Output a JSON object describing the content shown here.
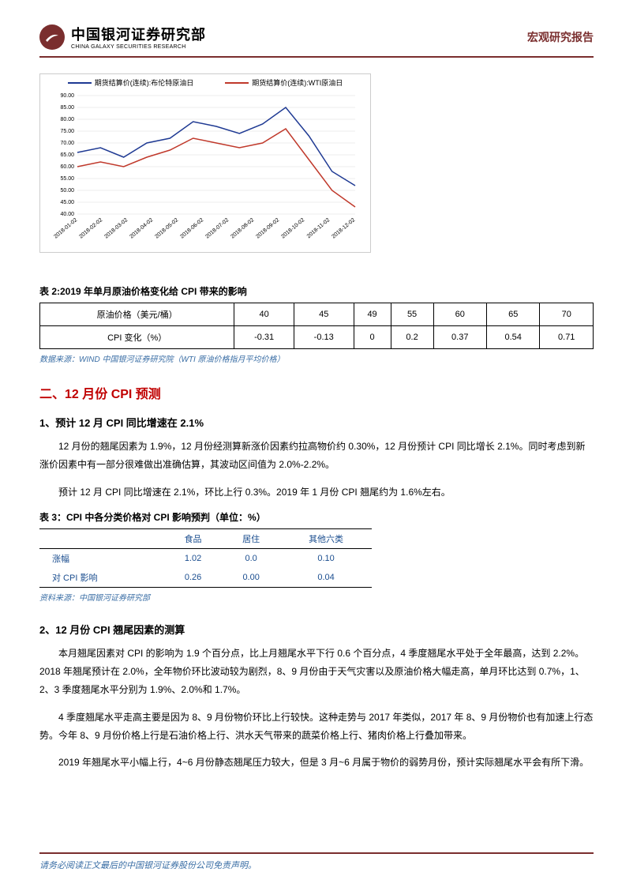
{
  "header": {
    "logo_cn": "中国银河证券研究部",
    "logo_en": "CHINA GALAXY SECURITIES RESEARCH",
    "doc_type": "宏观研究报告"
  },
  "chart1": {
    "type": "line",
    "legend": [
      {
        "label": "期货结算价(连续):布伦特原油日",
        "color": "#1f3a93"
      },
      {
        "label": "期货结算价(连续):WTI原油日",
        "color": "#c0392b"
      }
    ],
    "ylim": [
      40,
      90
    ],
    "ytick_step": 5,
    "yticks": [
      "40.00",
      "45.00",
      "50.00",
      "55.00",
      "60.00",
      "65.00",
      "70.00",
      "75.00",
      "80.00",
      "85.00",
      "90.00"
    ],
    "xlabels": [
      "2018-01-02",
      "2018-02-02",
      "2018-03-02",
      "2018-04-02",
      "2018-05-02",
      "2018-06-02",
      "2018-07-02",
      "2018-08-02",
      "2018-09-02",
      "2018-10-02",
      "2018-11-02",
      "2018-12-02"
    ],
    "series_brent": [
      66,
      68,
      64,
      70,
      72,
      79,
      77,
      74,
      78,
      85,
      73,
      58,
      52
    ],
    "series_wti": [
      60,
      62,
      60,
      64,
      67,
      72,
      70,
      68,
      70,
      76,
      63,
      50,
      43
    ],
    "grid_color": "#dddddd",
    "background_color": "#ffffff",
    "title_fontsize": 9,
    "axis_fontsize": 7
  },
  "table2": {
    "title": "表 2:2019 年单月原油价格变化给 CPI 带来的影响",
    "row1_label": "原油价格（美元/桶）",
    "row2_label": "CPI 变化（%）",
    "prices": [
      "40",
      "45",
      "49",
      "55",
      "60",
      "65",
      "70"
    ],
    "cpi_change": [
      "-0.31",
      "-0.13",
      "0",
      "0.2",
      "0.37",
      "0.54",
      "0.71"
    ],
    "source": "数据来源：WIND 中国银河证券研究院（WTI 原油价格指月平均价格）"
  },
  "section2": {
    "title": "二、12 月份 CPI 预测"
  },
  "sub1": {
    "title": "1、预计 12 月 CPI 同比增速在 2.1%",
    "p1": "12 月份的翘尾因素为 1.9%，12 月份经测算新涨价因素约拉高物价约 0.30%，12 月份预计 CPI 同比增长 2.1%。同时考虑到新涨价因素中有一部分很难做出准确估算，其波动区间值为 2.0%-2.2%。",
    "p2": "预计 12 月 CPI 同比增速在 2.1%，环比上行 0.3%。2019 年 1 月份 CPI 翘尾约为 1.6%左右。"
  },
  "table3": {
    "title": "表 3：CPI 中各分类价格对 CPI 影响预判（单位：%）",
    "headers": [
      "",
      "食品",
      "居住",
      "其他六类"
    ],
    "rows": [
      {
        "label": "涨幅",
        "vals": [
          "1.02",
          "0.0",
          "0.10"
        ]
      },
      {
        "label": "对 CPI 影响",
        "vals": [
          "0.26",
          "0.00",
          "0.04"
        ]
      }
    ],
    "source": "资料来源：中国银河证券研究部"
  },
  "sub2": {
    "title": "2、12 月份 CPI 翘尾因素的测算",
    "p1": "本月翘尾因素对 CPI 的影响为 1.9 个百分点，比上月翘尾水平下行 0.6 个百分点，4 季度翘尾水平处于全年最高，达到 2.2%。2018 年翘尾预计在 2.0%，全年物价环比波动较为剧烈，8、9 月份由于天气灾害以及原油价格大幅走高，单月环比达到 0.7%，1、2、3 季度翘尾水平分别为 1.9%、2.0%和 1.7%。",
    "p2": "4 季度翘尾水平走高主要是因为 8、9 月份物价环比上行较快。这种走势与 2017 年类似，2017 年 8、9 月份物价也有加速上行态势。今年 8、9 月份价格上行是石油价格上行、洪水天气带来的蔬菜价格上行、猪肉价格上行叠加带来。",
    "p3": "2019 年翘尾水平小幅上行，4~6 月份静态翘尾压力较大，但是 3 月~6 月属于物价的弱势月份，预计实际翘尾水平会有所下滑。"
  },
  "footer": {
    "text": "请务必阅读正文最后的中国银河证券股份公司免责声明。"
  }
}
